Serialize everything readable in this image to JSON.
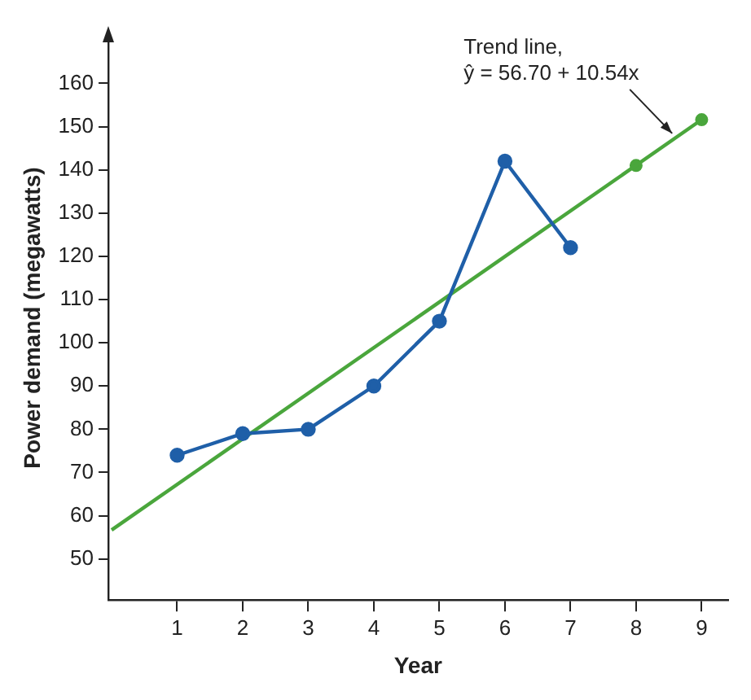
{
  "chart_data": {
    "type": "line",
    "xlabel": "Year",
    "ylabel": "Power demand (megawatts)",
    "xlim": [
      -0.05,
      9.4
    ],
    "xticks": [
      1,
      2,
      3,
      4,
      5,
      6,
      7,
      8,
      9
    ],
    "ylim": [
      40.5,
      171
    ],
    "yticks": [
      50,
      60,
      70,
      80,
      90,
      100,
      110,
      120,
      130,
      140,
      150,
      160
    ],
    "grid": false,
    "legend": false,
    "marker": "circle",
    "line_style": "solid",
    "series": [
      {
        "type": "line",
        "color": "#1f5fa8",
        "x": [
          1,
          2,
          3,
          4,
          5,
          6,
          7
        ],
        "values": [
          74,
          79,
          80,
          90,
          105,
          142,
          122
        ]
      },
      {
        "type": "line",
        "color": "#4aa63c",
        "marker": "none",
        "x": [
          0,
          9
        ],
        "values": [
          56.7,
          151.6
        ]
      },
      {
        "type": "scatter",
        "color": "#4aa63c",
        "x": [
          8,
          9
        ],
        "values": [
          141,
          151.6
        ]
      }
    ],
    "annotations": [
      {
        "text": "Trend line,\nŷ = 56.70 + 10.54x",
        "x": 8.6,
        "y": 147.3
      }
    ]
  }
}
